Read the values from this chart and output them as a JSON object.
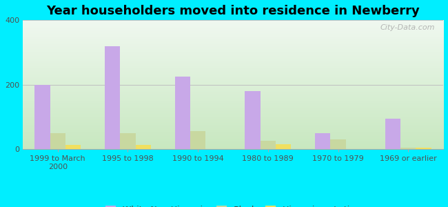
{
  "title": "Year householders moved into residence in Newberry",
  "categories": [
    "1999 to March\n2000",
    "1995 to 1998",
    "1990 to 1994",
    "1980 to 1989",
    "1970 to 1979",
    "1969 or earlier"
  ],
  "white_non_hispanic": [
    200,
    320,
    225,
    180,
    50,
    95
  ],
  "black": [
    50,
    50,
    55,
    25,
    30,
    5
  ],
  "hispanic_or_latino": [
    12,
    12,
    0,
    14,
    0,
    5
  ],
  "white_color": "#c8a8e8",
  "black_color": "#c8d8a0",
  "hispanic_color": "#f0e060",
  "background_outer": "#00eeff",
  "plot_bg_bottom": "#c8e8c0",
  "plot_bg_top": "#f0f8f0",
  "grid_color": "#c0c0c0",
  "ylim": [
    0,
    400
  ],
  "yticks": [
    0,
    200,
    400
  ],
  "bar_width": 0.22,
  "title_fontsize": 13,
  "legend_fontsize": 9,
  "tick_fontsize": 8,
  "watermark": "City-Data.com"
}
